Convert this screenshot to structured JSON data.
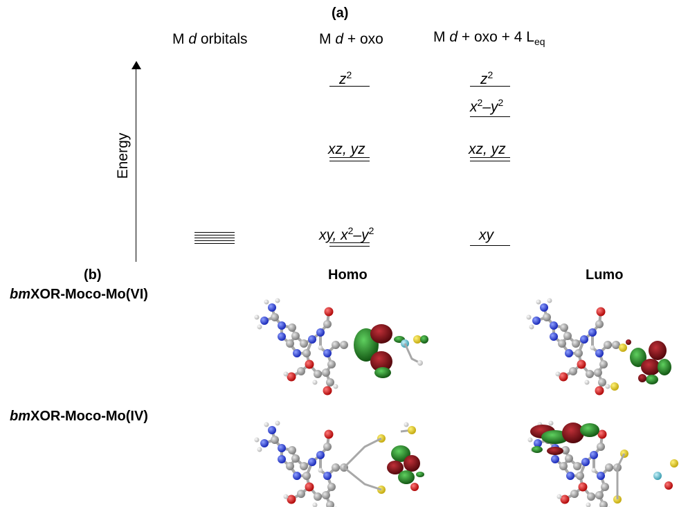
{
  "panel_a": {
    "label": "(a)",
    "col1_title": "M d orbitals",
    "col2_title": "M d + oxo",
    "col3_title_main": "M d + oxo + 4 L",
    "col3_title_sub": "eq",
    "axis_label": "Energy",
    "col2_levels": {
      "top": "z²",
      "mid": "xz, yz",
      "bottom": "xy, x²−y²"
    },
    "col3_levels": {
      "top": "z²",
      "second": "x²−y²",
      "mid": "xz, yz",
      "bottom": "xy"
    }
  },
  "panel_b": {
    "label": "(b)",
    "homo_header": "Homo",
    "lumo_header": "Lumo",
    "row1_prefix": "bm",
    "row1_label": "XOR-Moco-Mo(VI)",
    "row2_prefix": "bm",
    "row2_label": "XOR-Moco-Mo(IV)"
  },
  "colors": {
    "lobe_red": "#7a0a10",
    "lobe_green": "#1d7a1d",
    "atom_blue": "#2a3fd0",
    "atom_red": "#d01010",
    "atom_gray": "#9a9a9a",
    "atom_yellow": "#d8c21a",
    "atom_cyan": "#5fb9c9"
  }
}
